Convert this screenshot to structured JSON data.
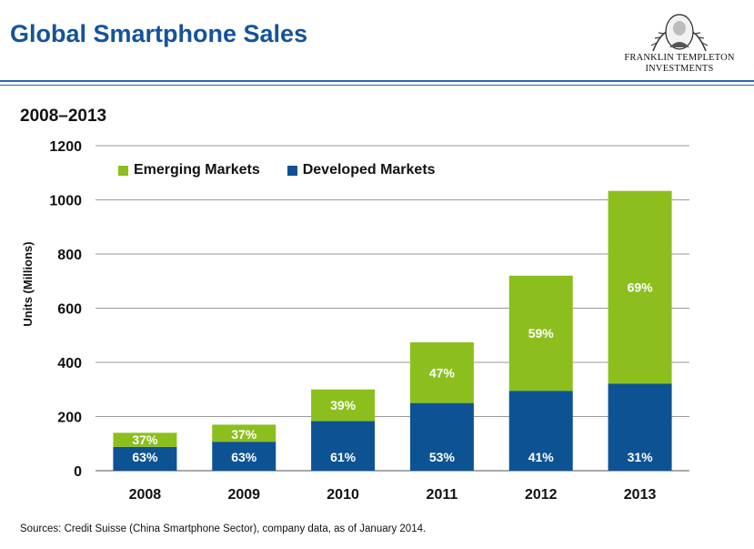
{
  "header": {
    "title": "Global Smartphone Sales",
    "logo_line1": "FRANKLIN TEMPLETON",
    "logo_line2": "INVESTMENTS",
    "logo_icon": "portrait-medallion-icon"
  },
  "subtitle": "2008–2013",
  "source": "Sources: Credit Suisse (China Smartphone Sector), company data, as of January 2014.",
  "colors": {
    "emerging": "#8cbf1e",
    "developed": "#0d5394",
    "title": "#14539a",
    "grid": "#9a9a9a"
  },
  "chart_data": {
    "type": "bar",
    "stacked": true,
    "categories": [
      "2008",
      "2009",
      "2010",
      "2011",
      "2012",
      "2013"
    ],
    "series": [
      {
        "name": "Developed Markets",
        "values": [
          88,
          107,
          183,
          250,
          295,
          321
        ],
        "labels": [
          "63%",
          "63%",
          "61%",
          "53%",
          "41%",
          "31%"
        ]
      },
      {
        "name": "Emerging Markets",
        "values": [
          52,
          63,
          117,
          224,
          425,
          712
        ],
        "labels": [
          "37%",
          "37%",
          "39%",
          "47%",
          "59%",
          "69%"
        ]
      }
    ],
    "title": "2008–2013",
    "xlabel": "",
    "ylabel": "Units (Millions)",
    "ylim": [
      0,
      1200
    ],
    "yticks": [
      "0",
      "200",
      "400",
      "600",
      "800",
      "1000",
      "1200"
    ],
    "grid": true,
    "legend": [
      "Emerging Markets",
      "Developed Markets"
    ],
    "legend_position": "top-left"
  }
}
